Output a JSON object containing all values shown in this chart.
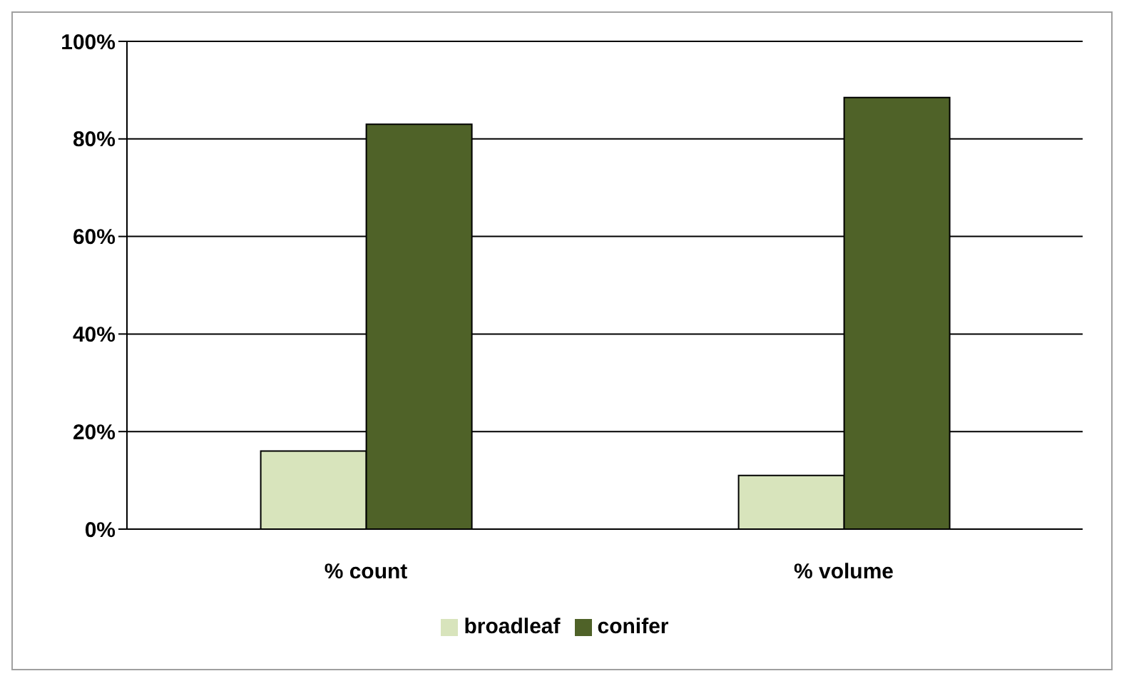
{
  "chart_data": {
    "type": "bar",
    "categories": [
      "% count",
      "% volume"
    ],
    "series": [
      {
        "name": "broadleaf",
        "color": "#d8e4bc",
        "values": [
          16,
          11
        ]
      },
      {
        "name": "conifer",
        "color": "#4f6228",
        "values": [
          83,
          88.5
        ]
      }
    ],
    "ylim": [
      0,
      100
    ],
    "yticks": [
      {
        "value": 0,
        "label": "0%"
      },
      {
        "value": 20,
        "label": "20%"
      },
      {
        "value": 40,
        "label": "40%"
      },
      {
        "value": 60,
        "label": "60%"
      },
      {
        "value": 80,
        "label": "80%"
      },
      {
        "value": 100,
        "label": "100%"
      }
    ],
    "grid": "y",
    "legend": "bottom"
  }
}
